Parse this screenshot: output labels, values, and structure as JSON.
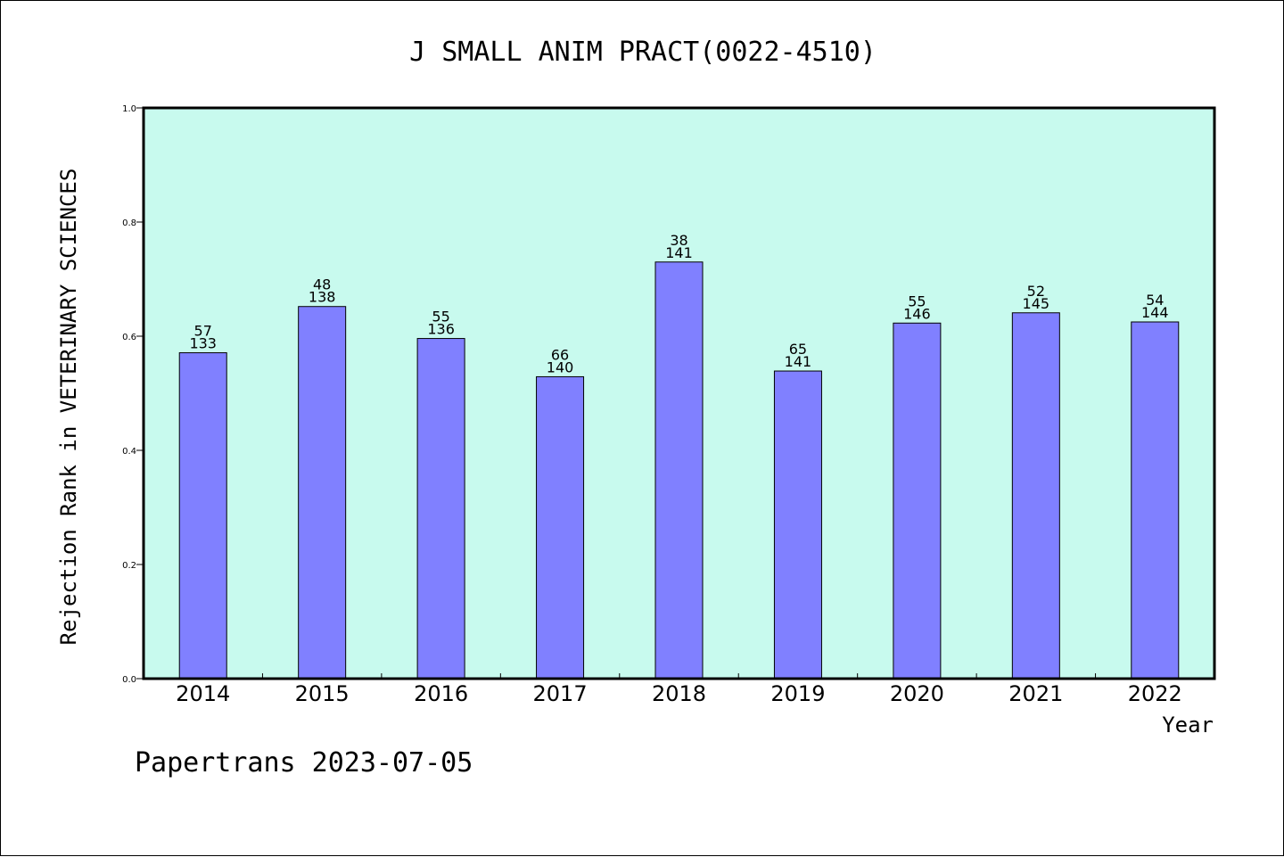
{
  "chart_data": {
    "type": "bar",
    "title": "J SMALL ANIM PRACT(0022-4510)",
    "xlabel": "Year",
    "ylabel": "Rejection Rank in VETERINARY SCIENCES",
    "ylim": [
      0,
      1.0
    ],
    "yticks": [
      "0.0",
      "0.2",
      "0.4",
      "0.6",
      "0.8",
      "1.0"
    ],
    "categories": [
      "2014",
      "2015",
      "2016",
      "2017",
      "2018",
      "2019",
      "2020",
      "2021",
      "2022"
    ],
    "values": [
      0.571,
      0.652,
      0.596,
      0.529,
      0.73,
      0.539,
      0.623,
      0.641,
      0.625
    ],
    "labels_top": [
      "57",
      "48",
      "55",
      "66",
      "38",
      "65",
      "55",
      "52",
      "54"
    ],
    "labels_bottom": [
      "133",
      "138",
      "136",
      "140",
      "141",
      "141",
      "146",
      "145",
      "144"
    ],
    "plot_background": "#c8faee",
    "bar_color": "#8080ff",
    "grid": false
  },
  "footer": "Papertrans 2023-07-05"
}
